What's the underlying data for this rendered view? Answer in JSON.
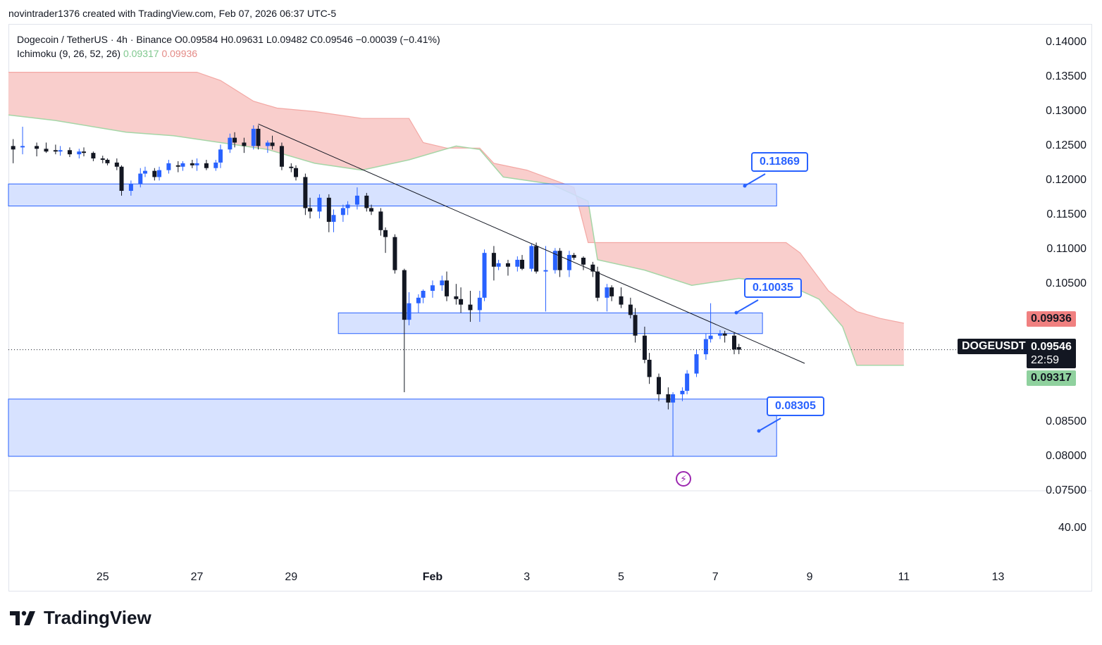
{
  "header": {
    "attribution": "novintrader1376 created with TradingView.com, Feb 07, 2026 06:37 UTC-5"
  },
  "legend": {
    "symbol_line": "Dogecoin / TetherUS · 4h · Binance  O0.09584  H0.09631  L0.09482  C0.09546  −0.00039 (−0.41%)",
    "indicator_name": "Ichimoku (9, 26, 52, 26)",
    "indicator_green": "0.09317",
    "indicator_red": "0.09936"
  },
  "price_axis": {
    "labels": [
      "0.14000",
      "0.13500",
      "0.13000",
      "0.12500",
      "0.12000",
      "0.11500",
      "0.11000",
      "0.10500",
      "0.08500",
      "0.08000",
      "0.07500"
    ],
    "lower_pane_label": "40.00"
  },
  "time_axis": {
    "labels": [
      "25",
      "27",
      "29",
      "Feb",
      "3",
      "5",
      "7",
      "9",
      "11",
      "13"
    ]
  },
  "price_tags": {
    "cloud_top": "0.09936",
    "symbol": "DOGEUSDT",
    "last": "0.09546",
    "countdown": "22:59",
    "cloud_bottom": "0.09317"
  },
  "callouts": {
    "upper": "0.11869",
    "middle": "0.10035",
    "lower": "0.08305"
  },
  "colors": {
    "bull": "#2962ff",
    "bear": "#131722",
    "cloud_fill": "#f8c6c3",
    "cloud_green": "#a5d6a7",
    "zone_fill": "#d0ddff",
    "zone_stroke": "#2962ff",
    "last_bg": "#131722",
    "cloud_top_bg": "#f08080",
    "cloud_bottom_bg": "#8fd19e"
  },
  "brand": {
    "name": "TradingView"
  },
  "chart_data": {
    "type": "candlestick",
    "symbol": "DOGEUSDT",
    "timeframe": "4h",
    "ylim": [
      0.075,
      0.1425
    ],
    "x_range_days": [
      23.0,
      44.5
    ],
    "x_tick_days": [
      25,
      27,
      29,
      32,
      34,
      36,
      38,
      40,
      42,
      44
    ],
    "candles": [
      {
        "t": 23.1,
        "o": 0.125,
        "h": 0.126,
        "l": 0.1225,
        "c": 0.1245
      },
      {
        "t": 23.3,
        "o": 0.1248,
        "h": 0.1278,
        "l": 0.1238,
        "c": 0.125
      },
      {
        "t": 23.6,
        "o": 0.125,
        "h": 0.1255,
        "l": 0.1235,
        "c": 0.1246
      },
      {
        "t": 23.8,
        "o": 0.1246,
        "h": 0.1255,
        "l": 0.124,
        "c": 0.1242
      },
      {
        "t": 24.0,
        "o": 0.1244,
        "h": 0.1252,
        "l": 0.1238,
        "c": 0.1242
      },
      {
        "t": 24.1,
        "o": 0.1242,
        "h": 0.125,
        "l": 0.1236,
        "c": 0.1244
      },
      {
        "t": 24.3,
        "o": 0.1244,
        "h": 0.1248,
        "l": 0.1234,
        "c": 0.1238
      },
      {
        "t": 24.5,
        "o": 0.1238,
        "h": 0.1246,
        "l": 0.1232,
        "c": 0.1242
      },
      {
        "t": 24.6,
        "o": 0.1242,
        "h": 0.1248,
        "l": 0.1235,
        "c": 0.124
      },
      {
        "t": 24.8,
        "o": 0.124,
        "h": 0.1242,
        "l": 0.1228,
        "c": 0.1232
      },
      {
        "t": 25.0,
        "o": 0.1232,
        "h": 0.1236,
        "l": 0.1225,
        "c": 0.123
      },
      {
        "t": 25.1,
        "o": 0.123,
        "h": 0.1232,
        "l": 0.1222,
        "c": 0.1225
      },
      {
        "t": 25.3,
        "o": 0.1226,
        "h": 0.1232,
        "l": 0.1215,
        "c": 0.122
      },
      {
        "t": 25.4,
        "o": 0.122,
        "h": 0.1222,
        "l": 0.1178,
        "c": 0.1185
      },
      {
        "t": 25.6,
        "o": 0.1185,
        "h": 0.12,
        "l": 0.1178,
        "c": 0.1195
      },
      {
        "t": 25.8,
        "o": 0.1195,
        "h": 0.1218,
        "l": 0.119,
        "c": 0.121
      },
      {
        "t": 25.9,
        "o": 0.121,
        "h": 0.122,
        "l": 0.1205,
        "c": 0.1214
      },
      {
        "t": 26.1,
        "o": 0.1214,
        "h": 0.1218,
        "l": 0.12,
        "c": 0.1205
      },
      {
        "t": 26.2,
        "o": 0.1205,
        "h": 0.122,
        "l": 0.12,
        "c": 0.1215
      },
      {
        "t": 26.4,
        "o": 0.1215,
        "h": 0.123,
        "l": 0.121,
        "c": 0.1225
      },
      {
        "t": 26.6,
        "o": 0.1222,
        "h": 0.1228,
        "l": 0.1212,
        "c": 0.122
      },
      {
        "t": 26.7,
        "o": 0.122,
        "h": 0.1228,
        "l": 0.1214,
        "c": 0.1225
      },
      {
        "t": 26.9,
        "o": 0.1225,
        "h": 0.123,
        "l": 0.1218,
        "c": 0.1222
      },
      {
        "t": 27.0,
        "o": 0.1222,
        "h": 0.1232,
        "l": 0.1214,
        "c": 0.1225
      },
      {
        "t": 27.2,
        "o": 0.1225,
        "h": 0.123,
        "l": 0.1215,
        "c": 0.1218
      },
      {
        "t": 27.4,
        "o": 0.1218,
        "h": 0.123,
        "l": 0.1214,
        "c": 0.1226
      },
      {
        "t": 27.5,
        "o": 0.1226,
        "h": 0.1252,
        "l": 0.1218,
        "c": 0.1245
      },
      {
        "t": 27.7,
        "o": 0.1245,
        "h": 0.1268,
        "l": 0.124,
        "c": 0.1262
      },
      {
        "t": 27.8,
        "o": 0.1262,
        "h": 0.127,
        "l": 0.1248,
        "c": 0.1255
      },
      {
        "t": 28.0,
        "o": 0.1255,
        "h": 0.1262,
        "l": 0.124,
        "c": 0.125
      },
      {
        "t": 28.2,
        "o": 0.125,
        "h": 0.128,
        "l": 0.1245,
        "c": 0.1275
      },
      {
        "t": 28.3,
        "o": 0.1275,
        "h": 0.128,
        "l": 0.1245,
        "c": 0.125
      },
      {
        "t": 28.5,
        "o": 0.125,
        "h": 0.1258,
        "l": 0.124,
        "c": 0.1255
      },
      {
        "t": 28.6,
        "o": 0.1255,
        "h": 0.1265,
        "l": 0.1245,
        "c": 0.125
      },
      {
        "t": 28.8,
        "o": 0.125,
        "h": 0.1255,
        "l": 0.1215,
        "c": 0.122
      },
      {
        "t": 29.0,
        "o": 0.122,
        "h": 0.1225,
        "l": 0.1212,
        "c": 0.1218
      },
      {
        "t": 29.1,
        "o": 0.1218,
        "h": 0.1222,
        "l": 0.12,
        "c": 0.1205
      },
      {
        "t": 29.3,
        "o": 0.1205,
        "h": 0.121,
        "l": 0.115,
        "c": 0.116
      },
      {
        "t": 29.4,
        "o": 0.116,
        "h": 0.1175,
        "l": 0.1145,
        "c": 0.1155
      },
      {
        "t": 29.6,
        "o": 0.1155,
        "h": 0.118,
        "l": 0.1145,
        "c": 0.1175
      },
      {
        "t": 29.8,
        "o": 0.1175,
        "h": 0.118,
        "l": 0.1125,
        "c": 0.114
      },
      {
        "t": 29.9,
        "o": 0.114,
        "h": 0.1158,
        "l": 0.1125,
        "c": 0.115
      },
      {
        "t": 30.1,
        "o": 0.115,
        "h": 0.1165,
        "l": 0.114,
        "c": 0.116
      },
      {
        "t": 30.2,
        "o": 0.116,
        "h": 0.117,
        "l": 0.115,
        "c": 0.1165
      },
      {
        "t": 30.4,
        "o": 0.1165,
        "h": 0.119,
        "l": 0.1158,
        "c": 0.1178
      },
      {
        "t": 30.6,
        "o": 0.1178,
        "h": 0.1182,
        "l": 0.1155,
        "c": 0.116
      },
      {
        "t": 30.7,
        "o": 0.116,
        "h": 0.1165,
        "l": 0.115,
        "c": 0.1155
      },
      {
        "t": 30.9,
        "o": 0.1155,
        "h": 0.116,
        "l": 0.112,
        "c": 0.1128
      },
      {
        "t": 31.0,
        "o": 0.1128,
        "h": 0.1132,
        "l": 0.1095,
        "c": 0.1118
      },
      {
        "t": 31.2,
        "o": 0.1118,
        "h": 0.1122,
        "l": 0.1065,
        "c": 0.107
      },
      {
        "t": 31.4,
        "o": 0.107,
        "h": 0.1072,
        "l": 0.0893,
        "c": 0.0998
      },
      {
        "t": 31.5,
        "o": 0.0998,
        "h": 0.1038,
        "l": 0.099,
        "c": 0.1022
      },
      {
        "t": 31.7,
        "o": 0.1022,
        "h": 0.1035,
        "l": 0.1008,
        "c": 0.103
      },
      {
        "t": 31.8,
        "o": 0.103,
        "h": 0.1042,
        "l": 0.1022,
        "c": 0.104
      },
      {
        "t": 32.0,
        "o": 0.104,
        "h": 0.1055,
        "l": 0.103,
        "c": 0.1048
      },
      {
        "t": 32.2,
        "o": 0.1048,
        "h": 0.1062,
        "l": 0.104,
        "c": 0.1055
      },
      {
        "t": 32.3,
        "o": 0.1055,
        "h": 0.1068,
        "l": 0.1025,
        "c": 0.1032
      },
      {
        "t": 32.5,
        "o": 0.1032,
        "h": 0.105,
        "l": 0.102,
        "c": 0.1028
      },
      {
        "t": 32.6,
        "o": 0.1028,
        "h": 0.1045,
        "l": 0.1008,
        "c": 0.102
      },
      {
        "t": 32.8,
        "o": 0.102,
        "h": 0.104,
        "l": 0.0995,
        "c": 0.1012
      },
      {
        "t": 33.0,
        "o": 0.1012,
        "h": 0.104,
        "l": 0.0995,
        "c": 0.103
      },
      {
        "t": 33.1,
        "o": 0.103,
        "h": 0.11,
        "l": 0.1025,
        "c": 0.1095
      },
      {
        "t": 33.3,
        "o": 0.1095,
        "h": 0.1105,
        "l": 0.1055,
        "c": 0.1075
      },
      {
        "t": 33.4,
        "o": 0.1075,
        "h": 0.1085,
        "l": 0.107,
        "c": 0.108
      },
      {
        "t": 33.6,
        "o": 0.108,
        "h": 0.1085,
        "l": 0.1062,
        "c": 0.1075
      },
      {
        "t": 33.8,
        "o": 0.1075,
        "h": 0.109,
        "l": 0.1068,
        "c": 0.1085
      },
      {
        "t": 33.9,
        "o": 0.1085,
        "h": 0.1092,
        "l": 0.107,
        "c": 0.1072
      },
      {
        "t": 34.1,
        "o": 0.1072,
        "h": 0.1108,
        "l": 0.1068,
        "c": 0.1105
      },
      {
        "t": 34.2,
        "o": 0.1105,
        "h": 0.111,
        "l": 0.1065,
        "c": 0.1068
      },
      {
        "t": 34.4,
        "o": 0.1068,
        "h": 0.1105,
        "l": 0.101,
        "c": 0.107
      },
      {
        "t": 34.6,
        "o": 0.107,
        "h": 0.1102,
        "l": 0.1065,
        "c": 0.1098
      },
      {
        "t": 34.7,
        "o": 0.1098,
        "h": 0.1102,
        "l": 0.106,
        "c": 0.107
      },
      {
        "t": 34.9,
        "o": 0.107,
        "h": 0.1098,
        "l": 0.106,
        "c": 0.1092
      },
      {
        "t": 35.0,
        "o": 0.1092,
        "h": 0.1095,
        "l": 0.1085,
        "c": 0.1088
      },
      {
        "t": 35.2,
        "o": 0.1088,
        "h": 0.109,
        "l": 0.107,
        "c": 0.1078
      },
      {
        "t": 35.4,
        "o": 0.1078,
        "h": 0.1082,
        "l": 0.106,
        "c": 0.1068
      },
      {
        "t": 35.5,
        "o": 0.1068,
        "h": 0.1075,
        "l": 0.1025,
        "c": 0.103
      },
      {
        "t": 35.7,
        "o": 0.103,
        "h": 0.105,
        "l": 0.101,
        "c": 0.1045
      },
      {
        "t": 35.8,
        "o": 0.1045,
        "h": 0.1048,
        "l": 0.1025,
        "c": 0.1032
      },
      {
        "t": 36.0,
        "o": 0.1032,
        "h": 0.1045,
        "l": 0.1015,
        "c": 0.102
      },
      {
        "t": 36.2,
        "o": 0.102,
        "h": 0.103,
        "l": 0.1,
        "c": 0.1005
      },
      {
        "t": 36.3,
        "o": 0.1005,
        "h": 0.1015,
        "l": 0.0965,
        "c": 0.0975
      },
      {
        "t": 36.5,
        "o": 0.0975,
        "h": 0.0988,
        "l": 0.0935,
        "c": 0.094
      },
      {
        "t": 36.6,
        "o": 0.094,
        "h": 0.095,
        "l": 0.0905,
        "c": 0.0915
      },
      {
        "t": 36.8,
        "o": 0.0915,
        "h": 0.092,
        "l": 0.088,
        "c": 0.089
      },
      {
        "t": 37.0,
        "o": 0.089,
        "h": 0.09,
        "l": 0.0868,
        "c": 0.0878
      },
      {
        "t": 37.1,
        "o": 0.0878,
        "h": 0.0893,
        "l": 0.08,
        "c": 0.089
      },
      {
        "t": 37.3,
        "o": 0.089,
        "h": 0.09,
        "l": 0.088,
        "c": 0.0895
      },
      {
        "t": 37.4,
        "o": 0.0895,
        "h": 0.0925,
        "l": 0.089,
        "c": 0.092
      },
      {
        "t": 37.6,
        "o": 0.092,
        "h": 0.0955,
        "l": 0.0915,
        "c": 0.0948
      },
      {
        "t": 37.8,
        "o": 0.0948,
        "h": 0.0978,
        "l": 0.094,
        "c": 0.097
      },
      {
        "t": 37.9,
        "o": 0.097,
        "h": 0.1022,
        "l": 0.0965,
        "c": 0.0975
      },
      {
        "t": 38.1,
        "o": 0.0975,
        "h": 0.0983,
        "l": 0.097,
        "c": 0.0978
      },
      {
        "t": 38.2,
        "o": 0.0978,
        "h": 0.0982,
        "l": 0.0965,
        "c": 0.0975
      },
      {
        "t": 38.4,
        "o": 0.0975,
        "h": 0.098,
        "l": 0.0948,
        "c": 0.0955
      },
      {
        "t": 38.5,
        "o": 0.09584,
        "h": 0.09631,
        "l": 0.09482,
        "c": 0.09546
      }
    ],
    "ichimoku": {
      "params": "9, 26, 52, 26",
      "span_a_last": 0.09317,
      "span_b_last": 0.09936,
      "cloud_upper": [
        [
          23.0,
          0.1357
        ],
        [
          27.0,
          0.1357
        ],
        [
          27.5,
          0.1345
        ],
        [
          28.2,
          0.1315
        ],
        [
          28.7,
          0.1305
        ],
        [
          29.5,
          0.13
        ],
        [
          30.5,
          0.129
        ],
        [
          31.5,
          0.129
        ],
        [
          31.8,
          0.1255
        ],
        [
          32.3,
          0.1247
        ],
        [
          33.0,
          0.1247
        ],
        [
          33.3,
          0.1225
        ],
        [
          34.0,
          0.1215
        ],
        [
          35.0,
          0.119
        ],
        [
          35.3,
          0.111
        ],
        [
          39.0,
          0.111
        ],
        [
          39.5,
          0.111
        ],
        [
          39.8,
          0.1095
        ],
        [
          40.4,
          0.104
        ],
        [
          41.0,
          0.101
        ],
        [
          41.5,
          0.1
        ],
        [
          42.0,
          0.0993
        ]
      ],
      "cloud_lower": [
        [
          23.0,
          0.1295
        ],
        [
          24.0,
          0.1287
        ],
        [
          25.5,
          0.127
        ],
        [
          26.5,
          0.1265
        ],
        [
          27.5,
          0.1255
        ],
        [
          28.5,
          0.1245
        ],
        [
          29.5,
          0.1225
        ],
        [
          30.5,
          0.1215
        ],
        [
          31.5,
          0.123
        ],
        [
          32.5,
          0.125
        ],
        [
          33.0,
          0.1245
        ],
        [
          33.5,
          0.1205
        ],
        [
          34.5,
          0.1195
        ],
        [
          35.3,
          0.117
        ],
        [
          35.5,
          0.1085
        ],
        [
          36.5,
          0.107
        ],
        [
          37.5,
          0.1048
        ],
        [
          38.5,
          0.1058
        ],
        [
          39.5,
          0.105
        ],
        [
          40.2,
          0.1028
        ],
        [
          40.7,
          0.0988
        ],
        [
          41.0,
          0.0932
        ],
        [
          42.0,
          0.0932
        ]
      ]
    },
    "trendline": [
      [
        28.3,
        0.1282
      ],
      [
        39.7,
        0.0927
      ]
    ],
    "zones": [
      {
        "t0": 23.0,
        "t1": 39.3,
        "low": 0.1163,
        "high": 0.1195,
        "label": "0.11869"
      },
      {
        "t0": 30.0,
        "t1": 39.0,
        "low": 0.0978,
        "high": 0.1008,
        "label": "0.10035"
      },
      {
        "t0": 23.0,
        "t1": 39.3,
        "low": 0.08,
        "high": 0.0883,
        "label": "0.08305"
      }
    ],
    "last_price": 0.09546,
    "cloud_top_price": 0.09936,
    "cloud_bottom_price": 0.09317
  }
}
